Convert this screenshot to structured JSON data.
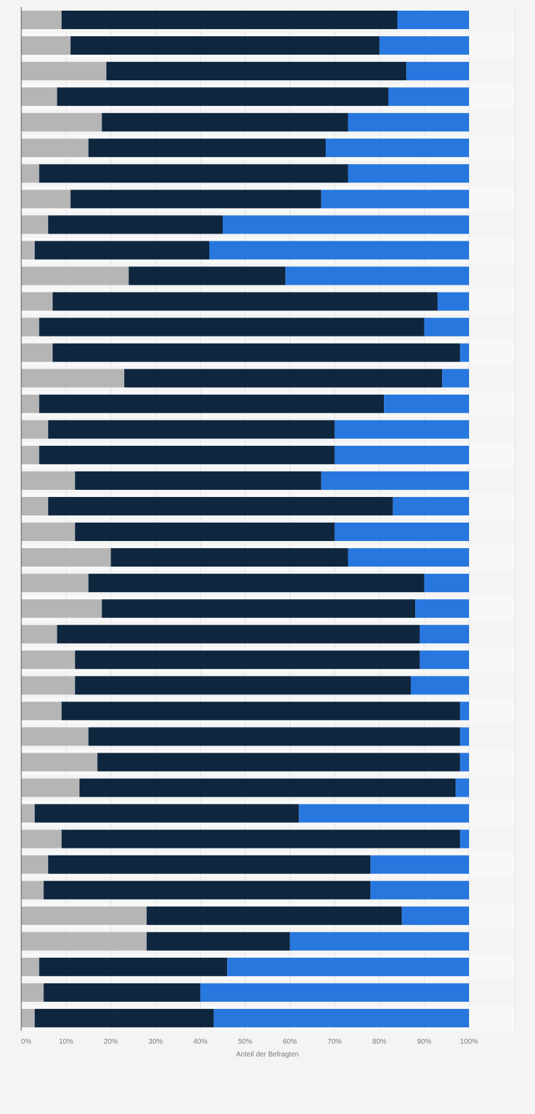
{
  "chart_data": {
    "type": "bar",
    "orientation": "horizontal",
    "stacked": true,
    "xlabel": "Anteil der Befragten",
    "xlim": [
      0,
      100
    ],
    "x_ticks": [
      "0%",
      "10%",
      "20%",
      "30%",
      "40%",
      "50%",
      "60%",
      "70%",
      "80%",
      "90%",
      "100%"
    ],
    "grid": true,
    "categories_visible": false,
    "series": [
      {
        "color": "#b5b5b5",
        "values": [
          9,
          11,
          19,
          8,
          18,
          15,
          4,
          11,
          6,
          3,
          24,
          7,
          4,
          7,
          23,
          4,
          6,
          4,
          12,
          6,
          12,
          20,
          15,
          18,
          8,
          12,
          12,
          9,
          15,
          17,
          13,
          3,
          9,
          6,
          5,
          28,
          28,
          4,
          5,
          3
        ]
      },
      {
        "color": "#0f263f",
        "values": [
          75,
          69,
          67,
          74,
          55,
          53,
          69,
          56,
          39,
          39,
          35,
          86,
          86,
          91,
          71,
          77,
          64,
          66,
          55,
          77,
          58,
          53,
          75,
          70,
          81,
          77,
          75,
          89,
          83,
          81,
          84,
          59,
          89,
          72,
          73,
          57,
          32,
          42,
          35,
          40
        ]
      },
      {
        "color": "#2877de",
        "values": [
          16,
          20,
          14,
          18,
          27,
          32,
          27,
          33,
          55,
          58,
          41,
          7,
          10,
          2,
          6,
          19,
          30,
          30,
          33,
          17,
          30,
          27,
          10,
          12,
          11,
          11,
          13,
          2,
          2,
          2,
          3,
          38,
          2,
          22,
          22,
          15,
          40,
          54,
          60,
          57
        ]
      }
    ]
  }
}
